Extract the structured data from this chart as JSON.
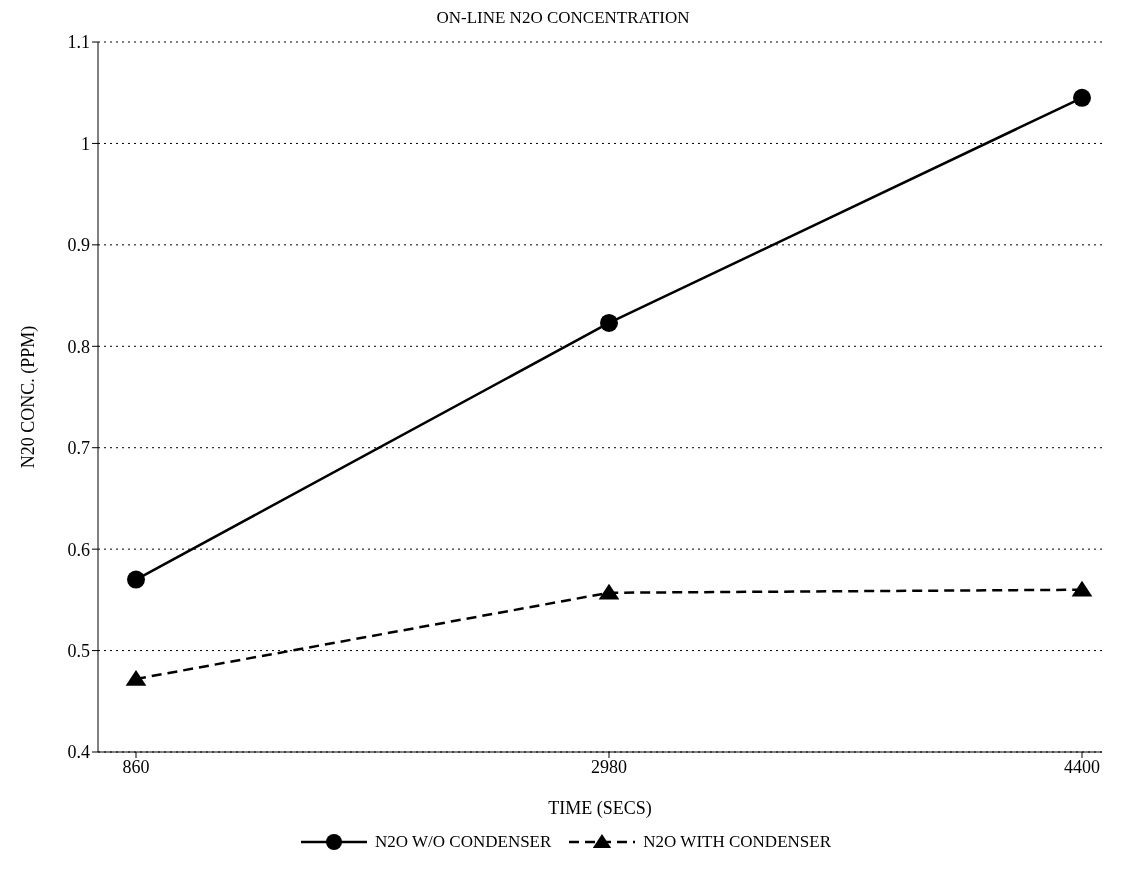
{
  "chart_data": {
    "type": "line",
    "title": "ON-LINE N2O CONCENTRATION",
    "xlabel": "TIME (SECS)",
    "ylabel": "N20 CONC. (PPM)",
    "categories": [
      "860",
      "2980",
      "4400"
    ],
    "series": [
      {
        "name": "N2O W/O CONDENSER",
        "color": "#000000",
        "values": [
          0.57,
          0.823,
          1.045
        ],
        "marker": "circle",
        "line_style": "solid"
      },
      {
        "name": "N2O WITH CONDENSER",
        "color": "#000000",
        "values": [
          0.472,
          0.557,
          0.56
        ],
        "marker": "triangle",
        "line_style": "dashed"
      }
    ],
    "ylim": [
      0.4,
      1.1
    ],
    "yticks": [
      0.4,
      0.5,
      0.6,
      0.7,
      0.8,
      0.9,
      1,
      1.1
    ],
    "grid": "y",
    "legend": "bottom"
  }
}
